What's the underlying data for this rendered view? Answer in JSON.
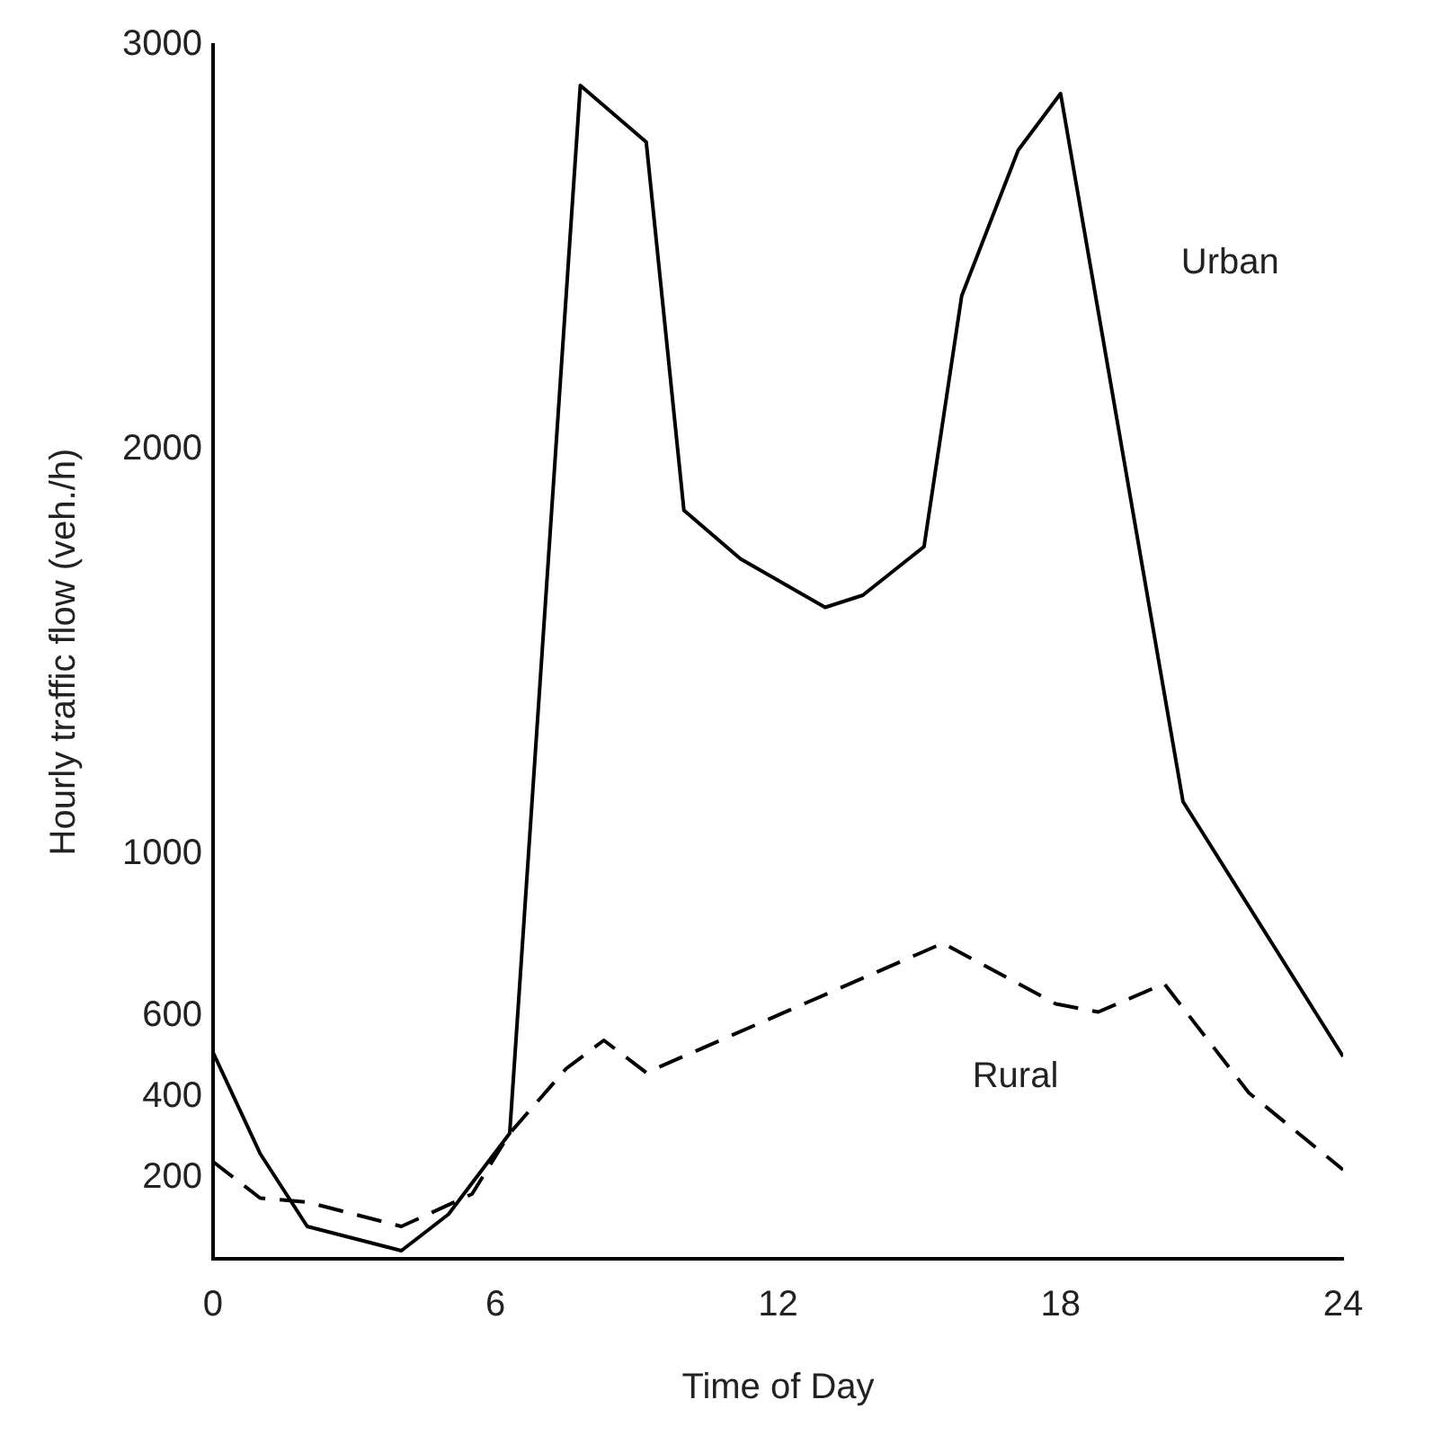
{
  "chart_data": {
    "type": "line",
    "xlabel": "Time of Day",
    "ylabel": "Hourly traffic flow (veh./h)",
    "xlim": [
      0,
      24
    ],
    "xticks": [
      0,
      6,
      12,
      18,
      24
    ],
    "ylim": [
      0,
      3000
    ],
    "yticks": [
      200,
      400,
      600,
      1000,
      2000,
      3000
    ],
    "grid": false,
    "legend": false,
    "marker": "none",
    "series": [
      {
        "name": "Urban",
        "color": "#000000",
        "line_style": "solid",
        "x": [
          0,
          1,
          2,
          4,
          5,
          6.3,
          7.8,
          9.2,
          10,
          11.2,
          13,
          13.8,
          15.1,
          15.9,
          17.1,
          18,
          20.6,
          24
        ],
        "values": [
          510,
          260,
          80,
          20,
          110,
          310,
          2900,
          2760,
          1850,
          1730,
          1610,
          1640,
          1760,
          2380,
          2740,
          2880,
          1130,
          500
        ]
      },
      {
        "name": "Rural",
        "color": "#000000",
        "line_style": "dashed",
        "x": [
          0,
          1,
          2,
          4,
          5.5,
          6.3,
          7.5,
          8.3,
          9.2,
          15.5,
          17.9,
          18.8,
          20.2,
          21,
          22,
          24
        ],
        "values": [
          240,
          150,
          140,
          80,
          160,
          310,
          470,
          540,
          460,
          780,
          630,
          610,
          680,
          560,
          410,
          220
        ]
      }
    ]
  }
}
